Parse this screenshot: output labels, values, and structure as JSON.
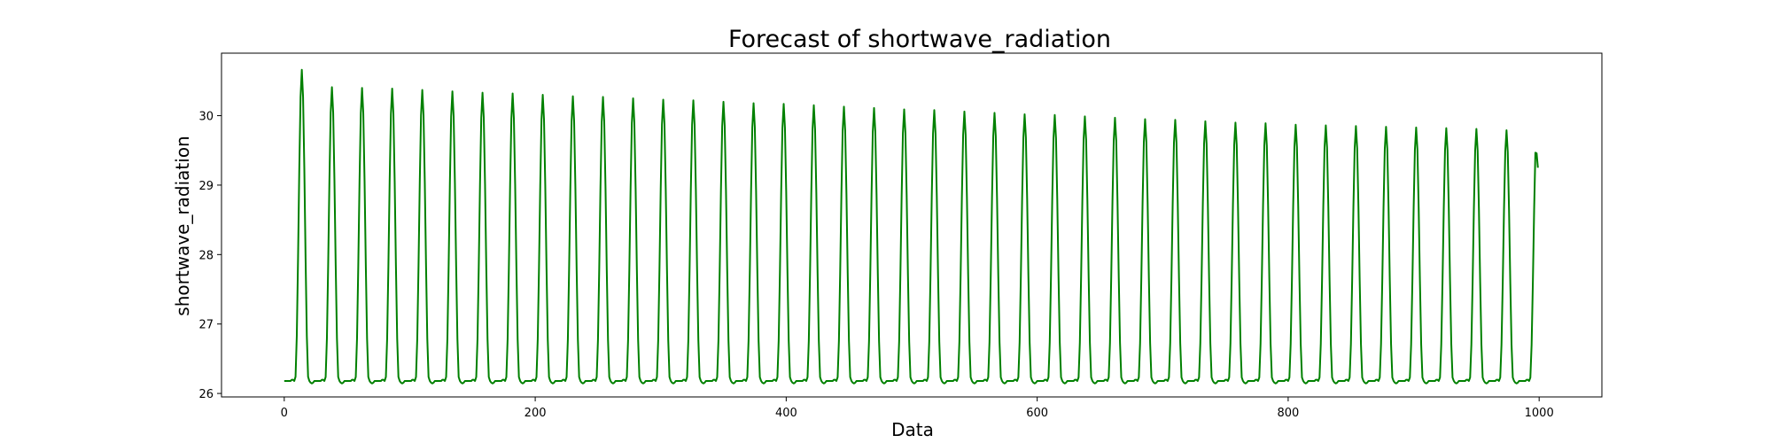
{
  "chart_data": {
    "type": "line",
    "title": "Forecast of shortwave_radiation",
    "xlabel": "Data",
    "ylabel": "shortwave_radiation",
    "xlim": [
      -50,
      1050
    ],
    "ylim": [
      25.95,
      30.9
    ],
    "xticks": [
      0,
      200,
      400,
      600,
      800,
      1000
    ],
    "yticks": [
      26,
      27,
      28,
      29,
      30
    ],
    "grid": false,
    "series": [
      {
        "color": "#008000",
        "points": 1000,
        "baseline": 26.18,
        "period": 24,
        "peak_positions": [
          14,
          38,
          62,
          86,
          110,
          134,
          158,
          182,
          206,
          230,
          254,
          278,
          302,
          326,
          350,
          374,
          398,
          422,
          446,
          470,
          494,
          518,
          542,
          566,
          590,
          614,
          638,
          662,
          686,
          710,
          734,
          758,
          782,
          806,
          830,
          854,
          878,
          902,
          926,
          950,
          974,
          998
        ],
        "peak_values": [
          30.66,
          30.41,
          30.4,
          30.39,
          30.37,
          30.35,
          30.33,
          30.32,
          30.3,
          30.28,
          30.27,
          30.25,
          30.23,
          30.22,
          30.2,
          30.18,
          30.17,
          30.15,
          30.13,
          30.11,
          30.09,
          30.08,
          30.06,
          30.04,
          30.02,
          30.01,
          29.99,
          29.97,
          29.95,
          29.94,
          29.92,
          29.9,
          29.89,
          29.87,
          29.86,
          29.85,
          29.84,
          29.83,
          29.82,
          29.81,
          29.79,
          29.78
        ],
        "last_value": 29.25
      }
    ]
  }
}
